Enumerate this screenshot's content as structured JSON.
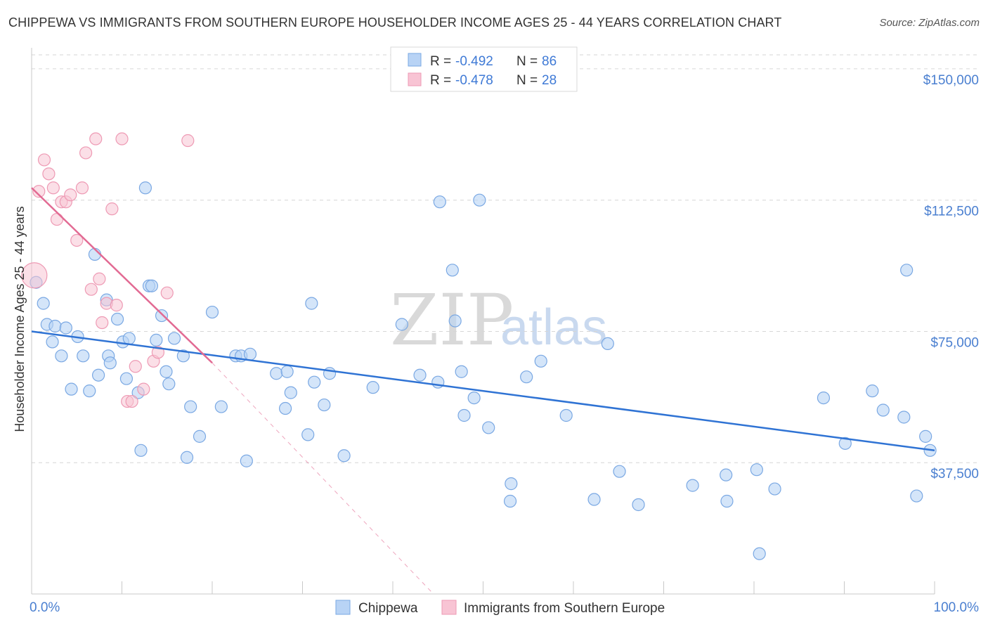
{
  "title": "CHIPPEWA VS IMMIGRANTS FROM SOUTHERN EUROPE HOUSEHOLDER INCOME AGES 25 - 44 YEARS CORRELATION CHART",
  "source": "Source: ZipAtlas.com",
  "watermark": {
    "zip": "ZIP",
    "atlas": "atlas"
  },
  "colors": {
    "blue_fill": "#b8d3f5",
    "blue_stroke": "#7aa8e3",
    "blue_line": "#2f73d4",
    "pink_fill": "#f8c4d4",
    "pink_stroke": "#ee9ab4",
    "pink_line": "#e26a93",
    "grid": "#d6d6d6",
    "axis_text": "#4a7fd0"
  },
  "legend": {
    "rows": [
      {
        "r_label": "R = ",
        "r_value": "-0.492",
        "n_label": "N = ",
        "n_value": "86"
      },
      {
        "r_label": "R = ",
        "r_value": "-0.478",
        "n_label": "N = ",
        "n_value": "28"
      }
    ]
  },
  "chart_data": {
    "type": "scatter",
    "title": "CHIPPEWA VS IMMIGRANTS FROM SOUTHERN EUROPE HOUSEHOLDER INCOME AGES 25 - 44 YEARS CORRELATION CHART",
    "xlabel": "",
    "ylabel": "Householder Income Ages 25 - 44 years",
    "x_tick_labels": [
      "0.0%",
      "100.0%"
    ],
    "y_tick_labels": [
      "$37,500",
      "$75,000",
      "$112,500",
      "$150,000"
    ],
    "y_ticks": [
      37500,
      75000,
      112500,
      150000
    ],
    "xlim": [
      0,
      100
    ],
    "ylim": [
      0,
      154000
    ],
    "grid": true,
    "series": [
      {
        "name": "Chippewa",
        "r": -0.492,
        "n": 86,
        "trend": {
          "x0": 0,
          "y0": 75000,
          "x1": 100,
          "y1": 41000
        },
        "points": [
          [
            0.5,
            89000
          ],
          [
            1.3,
            83000
          ],
          [
            1.7,
            77000
          ],
          [
            2.3,
            72000
          ],
          [
            2.6,
            76500
          ],
          [
            3.3,
            68000
          ],
          [
            3.8,
            76000
          ],
          [
            4.4,
            58500
          ],
          [
            5.1,
            73500
          ],
          [
            5.7,
            68000
          ],
          [
            6.4,
            58000
          ],
          [
            7.0,
            97000
          ],
          [
            7.4,
            62500
          ],
          [
            8.3,
            84000
          ],
          [
            8.5,
            68000
          ],
          [
            8.7,
            66000
          ],
          [
            9.5,
            78500
          ],
          [
            10.1,
            72000
          ],
          [
            10.5,
            61500
          ],
          [
            10.8,
            73000
          ],
          [
            11.8,
            57500
          ],
          [
            12.1,
            41000
          ],
          [
            12.6,
            116000
          ],
          [
            13.0,
            88000
          ],
          [
            13.3,
            88000
          ],
          [
            13.8,
            72500
          ],
          [
            14.4,
            79500
          ],
          [
            14.9,
            63500
          ],
          [
            15.2,
            60000
          ],
          [
            15.8,
            73000
          ],
          [
            16.8,
            68000
          ],
          [
            17.2,
            39000
          ],
          [
            17.6,
            53500
          ],
          [
            18.6,
            45000
          ],
          [
            20.0,
            80500
          ],
          [
            21.0,
            53500
          ],
          [
            22.6,
            68000
          ],
          [
            23.2,
            68000
          ],
          [
            23.8,
            38000
          ],
          [
            24.2,
            68500
          ],
          [
            27.1,
            63000
          ],
          [
            28.1,
            53000
          ],
          [
            28.3,
            63500
          ],
          [
            28.7,
            57500
          ],
          [
            30.6,
            45500
          ],
          [
            31.0,
            83000
          ],
          [
            31.3,
            60500
          ],
          [
            32.4,
            54000
          ],
          [
            33.0,
            63000
          ],
          [
            34.6,
            39500
          ],
          [
            37.8,
            59000
          ],
          [
            41.0,
            77000
          ],
          [
            43.0,
            62500
          ],
          [
            45.0,
            60500
          ],
          [
            45.2,
            112000
          ],
          [
            46.6,
            92500
          ],
          [
            46.9,
            78000
          ],
          [
            47.6,
            63500
          ],
          [
            47.9,
            51000
          ],
          [
            49.0,
            56000
          ],
          [
            49.6,
            112500
          ],
          [
            50.6,
            47500
          ],
          [
            53.0,
            26500
          ],
          [
            53.1,
            31500
          ],
          [
            54.8,
            62000
          ],
          [
            56.4,
            66500
          ],
          [
            59.2,
            51000
          ],
          [
            62.3,
            27000
          ],
          [
            63.8,
            71500
          ],
          [
            65.1,
            35000
          ],
          [
            67.2,
            25500
          ],
          [
            73.2,
            31000
          ],
          [
            76.9,
            34000
          ],
          [
            77.0,
            26500
          ],
          [
            80.3,
            35500
          ],
          [
            80.6,
            11500
          ],
          [
            82.3,
            30000
          ],
          [
            87.7,
            56000
          ],
          [
            90.1,
            43000
          ],
          [
            93.1,
            58000
          ],
          [
            94.3,
            52500
          ],
          [
            96.6,
            50500
          ],
          [
            96.9,
            92500
          ],
          [
            98.0,
            28000
          ],
          [
            99.0,
            45000
          ],
          [
            99.5,
            41000
          ]
        ]
      },
      {
        "name": "Immigrants from Southern Europe",
        "r": -0.478,
        "n": 28,
        "trend": {
          "x0": 0,
          "y0": 116000,
          "x1": 20,
          "y1": 66000,
          "dash_x1": 44.5,
          "dash_y1": 0
        },
        "points": [
          [
            0.3,
            91000
          ],
          [
            0.8,
            115000
          ],
          [
            1.4,
            124000
          ],
          [
            1.9,
            120000
          ],
          [
            2.4,
            116000
          ],
          [
            2.8,
            107000
          ],
          [
            3.3,
            112000
          ],
          [
            3.8,
            112000
          ],
          [
            4.3,
            114000
          ],
          [
            5.0,
            101000
          ],
          [
            5.6,
            116000
          ],
          [
            6.0,
            126000
          ],
          [
            6.6,
            87000
          ],
          [
            7.1,
            130000
          ],
          [
            7.5,
            90000
          ],
          [
            7.8,
            77500
          ],
          [
            8.3,
            83000
          ],
          [
            8.9,
            110000
          ],
          [
            9.4,
            82500
          ],
          [
            10.0,
            130000
          ],
          [
            10.6,
            55000
          ],
          [
            11.1,
            55000
          ],
          [
            11.5,
            65000
          ],
          [
            12.4,
            58500
          ],
          [
            13.5,
            66500
          ],
          [
            14.0,
            69000
          ],
          [
            15.0,
            86000
          ],
          [
            17.3,
            129500
          ]
        ]
      }
    ]
  },
  "bottom_legend": {
    "items": [
      "Chippewa",
      "Immigrants from Southern Europe"
    ]
  }
}
